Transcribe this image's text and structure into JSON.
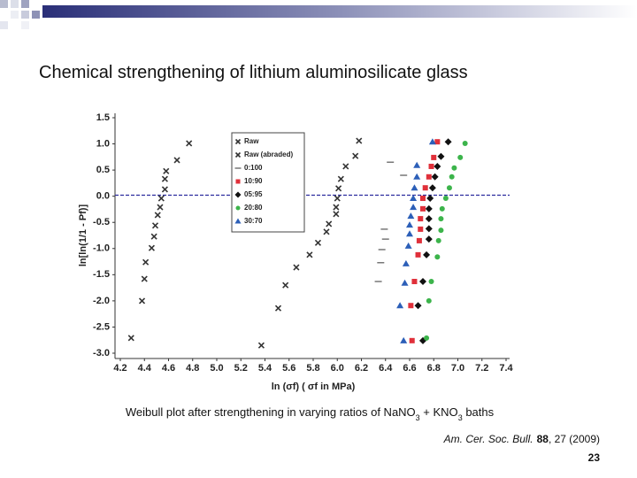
{
  "slide": {
    "title": "Chemical strengthening of lithium aluminosilicate glass",
    "caption": [
      "Weibull plot after strengthening in varying ratios of NaNO",
      "3",
      " + KNO",
      "3",
      " baths"
    ],
    "citation": {
      "journal": "Am. Cer. Soc. Bull.",
      "volume": "88",
      "rest": ", 27 (2009)"
    },
    "page_number": "23"
  },
  "chart_data": {
    "type": "scatter",
    "xlabel": "ln (σf) ( σf in MPa)",
    "ylabel": "ln[ln(1/1 - Pf)]",
    "xlim": [
      4.2,
      7.4
    ],
    "ylim": [
      -3.0,
      1.5
    ],
    "xticks": [
      4.2,
      4.4,
      4.6,
      4.8,
      {
        "value": 5.0,
        "label": "5.0"
      },
      5.2,
      5.4,
      5.6,
      5.8,
      {
        "value": 6.0,
        "label": "6.0"
      },
      6.2,
      6.4,
      6.6,
      6.8,
      {
        "value": 7.0,
        "label": "7.0"
      },
      7.2,
      7.4
    ],
    "yticks": [
      {
        "value": -3.0,
        "label": "-3.0"
      },
      -2.5,
      {
        "value": -2.0,
        "label": "-2.0"
      },
      -1.5,
      {
        "value": -1.0,
        "label": "-1.0"
      },
      -0.5,
      {
        "value": 0.0,
        "label": "0.0"
      },
      0.5,
      {
        "value": 1.0,
        "label": "1.0"
      },
      1.5
    ],
    "reference_line": {
      "y": 0.02,
      "color": "#2b2b9e"
    },
    "series": [
      {
        "name": "Raw",
        "color": "#333333",
        "marker": "x",
        "x": [
          5.37,
          5.51,
          5.57,
          5.66,
          5.77,
          5.84,
          5.91,
          5.93,
          5.99,
          5.99,
          6.0,
          6.01,
          6.03,
          6.07,
          6.15,
          6.18
        ],
        "values": [
          -2.85,
          -2.14,
          -1.7,
          -1.36,
          -1.12,
          -0.89,
          -0.68,
          -0.53,
          -0.34,
          -0.21,
          -0.04,
          0.15,
          0.33,
          0.57,
          0.77,
          1.06
        ]
      },
      {
        "name": "Raw (abraded)",
        "color": "#333333",
        "marker": "x",
        "x": [
          4.29,
          4.38,
          4.4,
          4.41,
          4.46,
          4.48,
          4.49,
          4.51,
          4.53,
          4.54,
          4.57,
          4.57,
          4.58,
          4.67,
          4.77
        ],
        "values": [
          -2.71,
          -2.0,
          -1.58,
          -1.26,
          -0.99,
          -0.77,
          -0.56,
          -0.36,
          -0.21,
          -0.04,
          0.13,
          0.33,
          0.48,
          0.69,
          1.01
        ]
      },
      {
        "name": "0:100",
        "color": "#777777",
        "marker": "dash",
        "x": [
          6.34,
          6.36,
          6.37,
          6.4,
          6.39,
          6.55,
          6.44
        ],
        "values": [
          -1.63,
          -1.27,
          -1.02,
          -0.82,
          -0.63,
          0.4,
          0.65
        ]
      },
      {
        "name": "10:90",
        "color": "#e0303a",
        "marker": "square",
        "x": [
          6.62,
          6.61,
          6.64,
          6.67,
          6.68,
          6.69,
          6.69,
          6.71,
          6.71,
          6.73,
          6.76,
          6.78,
          6.8,
          6.83
        ],
        "values": [
          -2.76,
          -2.09,
          -1.63,
          -1.12,
          -0.85,
          -0.63,
          -0.43,
          -0.24,
          -0.04,
          0.16,
          0.37,
          0.57,
          0.74,
          1.04
        ]
      },
      {
        "name": "05:95",
        "color": "#111111",
        "marker": "diamond",
        "x": [
          6.71,
          6.67,
          6.71,
          6.74,
          6.76,
          6.76,
          6.76,
          6.76,
          6.77,
          6.79,
          6.81,
          6.83,
          6.86,
          6.92
        ],
        "values": [
          -2.76,
          -2.09,
          -1.63,
          -1.12,
          -0.82,
          -0.62,
          -0.43,
          -0.24,
          -0.04,
          0.16,
          0.37,
          0.57,
          0.76,
          1.04
        ]
      },
      {
        "name": "20:80",
        "color": "#3cb44b",
        "marker": "circle",
        "x": [
          6.74,
          6.76,
          6.78,
          6.83,
          6.84,
          6.86,
          6.86,
          6.87,
          6.9,
          6.93,
          6.95,
          6.97,
          7.02,
          7.06
        ],
        "values": [
          -2.71,
          -2.0,
          -1.63,
          -1.16,
          -0.85,
          -0.65,
          -0.43,
          -0.24,
          -0.04,
          0.16,
          0.37,
          0.54,
          0.74,
          1.01
        ]
      },
      {
        "name": "30:70",
        "color": "#2c5fb8",
        "marker": "triangle",
        "x": [
          6.55,
          6.52,
          6.56,
          6.57,
          6.59,
          6.6,
          6.6,
          6.61,
          6.63,
          6.63,
          6.64,
          6.66,
          6.66,
          6.79
        ],
        "values": [
          -2.76,
          -2.09,
          -1.66,
          -1.29,
          -0.95,
          -0.72,
          -0.55,
          -0.38,
          -0.21,
          -0.04,
          0.16,
          0.37,
          0.59,
          1.04
        ]
      }
    ]
  }
}
